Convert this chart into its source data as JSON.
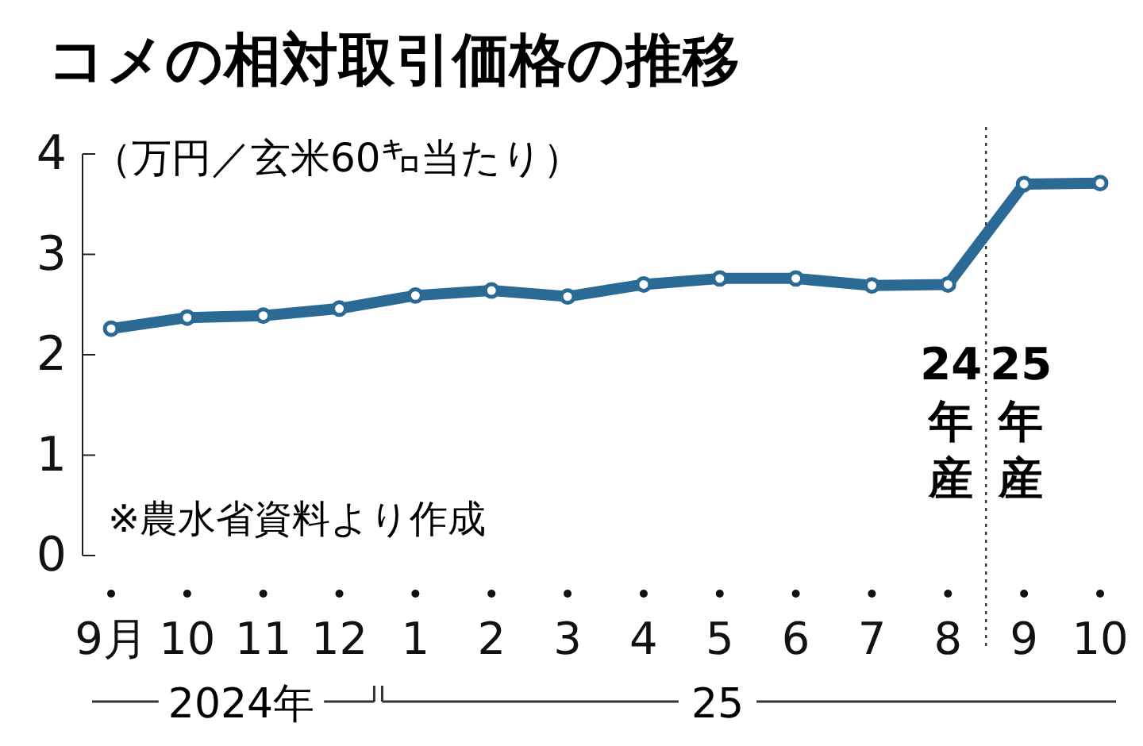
{
  "chart_data": {
    "type": "line",
    "title": "コメの相対取引価格の推移",
    "ylabel": "（万円／玄米60㌔当たり）",
    "categories": [
      "9月",
      "10",
      "11",
      "12",
      "1",
      "2",
      "3",
      "4",
      "5",
      "6",
      "7",
      "8",
      "9",
      "10"
    ],
    "series": [
      {
        "color": "#2a6a94",
        "values": [
          2.26,
          2.37,
          2.39,
          2.46,
          2.59,
          2.64,
          2.58,
          2.7,
          2.76,
          2.76,
          2.69,
          2.7,
          3.7,
          3.71
        ]
      }
    ],
    "ylim": [
      0,
      4
    ],
    "yticks": [
      0,
      1,
      2,
      3,
      4
    ],
    "marker": "circle",
    "grid": false,
    "annotations": [
      "※農水省資料より作成",
      "24年産",
      "25年産",
      "2024年",
      "25"
    ]
  }
}
